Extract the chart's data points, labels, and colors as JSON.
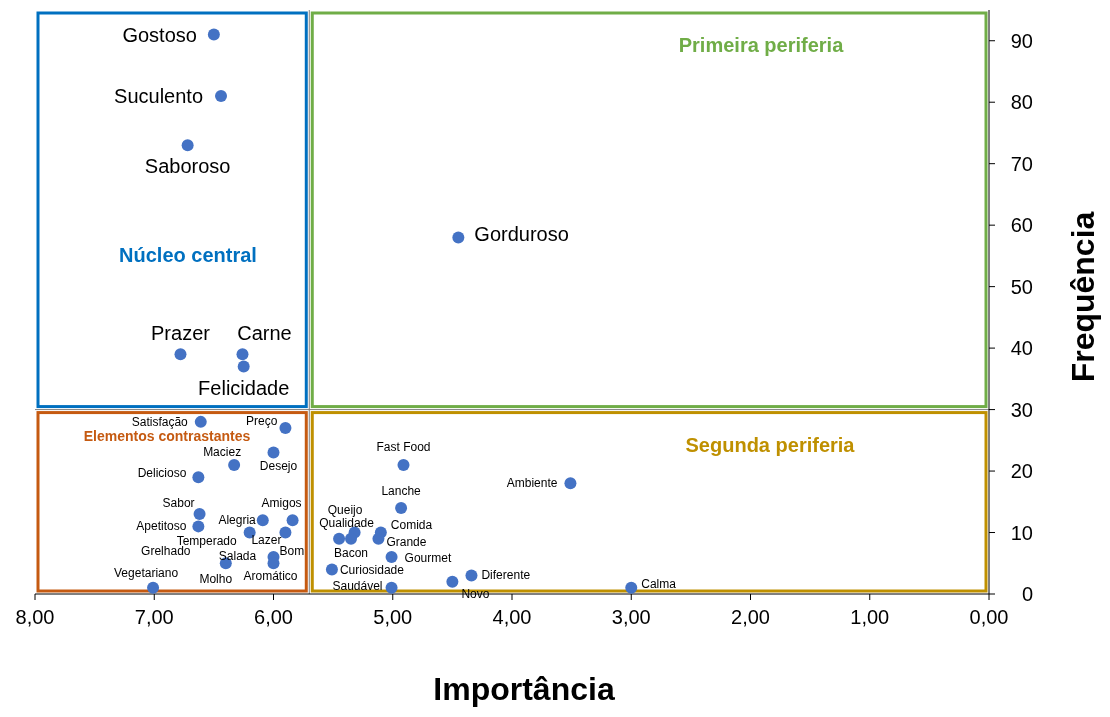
{
  "chart_data": {
    "type": "scatter",
    "xlabel": "Importância",
    "ylabel": "Frequência",
    "xlim": [
      8,
      0
    ],
    "ylim": [
      0,
      95
    ],
    "xticks": [
      {
        "value": 8,
        "label": "8,00"
      },
      {
        "value": 7,
        "label": "7,00"
      },
      {
        "value": 6,
        "label": "6,00"
      },
      {
        "value": 5,
        "label": "5,00"
      },
      {
        "value": 4,
        "label": "4,00"
      },
      {
        "value": 3,
        "label": "3,00"
      },
      {
        "value": 2,
        "label": "2,00"
      },
      {
        "value": 1,
        "label": "1,00"
      },
      {
        "value": 0,
        "label": "0,00"
      }
    ],
    "yticks": [
      0,
      10,
      20,
      30,
      40,
      50,
      60,
      70,
      80,
      90
    ],
    "grid": false,
    "marker": "circle",
    "ref_lines": [
      {
        "axis": "x",
        "value": 5.7
      },
      {
        "axis": "y",
        "value": 30
      }
    ],
    "x": [
      6.5,
      6.44,
      6.72,
      4.45,
      6.78,
      6.26,
      6.25,
      6.61,
      5.9,
      4.91,
      3.51,
      6.33,
      6.0,
      6.63,
      6.62,
      6.63,
      6.09,
      5.84,
      6.2,
      5.9,
      6.0,
      6.4,
      null,
      null,
      6.0,
      7.01,
      5.45,
      5.32,
      5.35,
      5.1,
      5.12,
      5.01,
      4.93,
      5.51,
      5.01,
      4.5,
      4.34,
      3.0
    ],
    "series": [
      {
        "color": "#4472c4",
        "values": [
          91,
          81,
          73,
          58,
          39,
          39,
          37,
          28,
          27,
          21,
          18,
          21,
          23,
          19,
          13,
          11,
          12,
          12,
          10,
          10,
          6,
          5,
          null,
          null,
          5,
          1,
          9,
          10,
          9,
          10,
          9,
          6,
          14,
          4,
          1,
          2,
          3,
          1
        ]
      }
    ],
    "annotations": [
      {
        "text": "Gostoso",
        "x": 6.5,
        "y": 91
      },
      {
        "text": "Suculento",
        "x": 6.44,
        "y": 81
      },
      {
        "text": "Saboroso",
        "x": 6.72,
        "y": 73
      },
      {
        "text": "Gorduroso",
        "x": 4.45,
        "y": 58
      },
      {
        "text": "Prazer",
        "x": 6.78,
        "y": 39
      },
      {
        "text": "Carne",
        "x": 6.26,
        "y": 39
      },
      {
        "text": "Felicidade",
        "x": 6.25,
        "y": 37
      },
      {
        "text": "Satisfação",
        "x": 6.61,
        "y": 28
      },
      {
        "text": "Preço",
        "x": 5.9,
        "y": 27
      },
      {
        "text": "Fast Food",
        "x": 4.91,
        "y": 21
      },
      {
        "text": "Ambiente",
        "x": 3.51,
        "y": 18
      },
      {
        "text": "Maciez",
        "x": 6.33,
        "y": 21
      },
      {
        "text": "Desejo",
        "x": 6.0,
        "y": 23
      },
      {
        "text": "Delicioso",
        "x": 6.63,
        "y": 19
      },
      {
        "text": "Sabor",
        "x": 6.62,
        "y": 13
      },
      {
        "text": "Apetitoso",
        "x": 6.63,
        "y": 11
      },
      {
        "text": "Alegria",
        "x": 6.09,
        "y": 12
      },
      {
        "text": "Amigos",
        "x": 5.84,
        "y": 12
      },
      {
        "text": "Temperado",
        "x": 6.2,
        "y": 10
      },
      {
        "text": "Lazer",
        "x": 5.9,
        "y": 10
      },
      {
        "text": "Bom",
        "x": 6.0,
        "y": 6
      },
      {
        "text": "Grelhado",
        "x": 6.4,
        "y": 5
      },
      {
        "text": "Salada",
        "x": 6.0,
        "y": 6
      },
      {
        "text": "Molho",
        "x": 6.4,
        "y": 5
      },
      {
        "text": "Aromático",
        "x": 6.0,
        "y": 5
      },
      {
        "text": "Vegetariano",
        "x": 7.01,
        "y": 1
      },
      {
        "text": "Queijo",
        "x": 5.45,
        "y": 9
      },
      {
        "text": "Qualidade",
        "x": 5.32,
        "y": 10
      },
      {
        "text": "Bacon",
        "x": 5.35,
        "y": 9
      },
      {
        "text": "Comida",
        "x": 5.1,
        "y": 10
      },
      {
        "text": "Grande",
        "x": 5.12,
        "y": 9
      },
      {
        "text": "Gourmet",
        "x": 5.01,
        "y": 6
      },
      {
        "text": "Lanche",
        "x": 4.93,
        "y": 14
      },
      {
        "text": "Curiosidade",
        "x": 5.51,
        "y": 4
      },
      {
        "text": "Saudável",
        "x": 5.01,
        "y": 1
      },
      {
        "text": "Novo",
        "x": 4.5,
        "y": 2
      },
      {
        "text": "Diferente",
        "x": 4.34,
        "y": 3
      },
      {
        "text": "Calma",
        "x": 3.0,
        "y": 1
      },
      "Núcleo central",
      "Primeira periferia",
      "Elementos contrastantes",
      "Segunda periferia"
    ]
  }
}
